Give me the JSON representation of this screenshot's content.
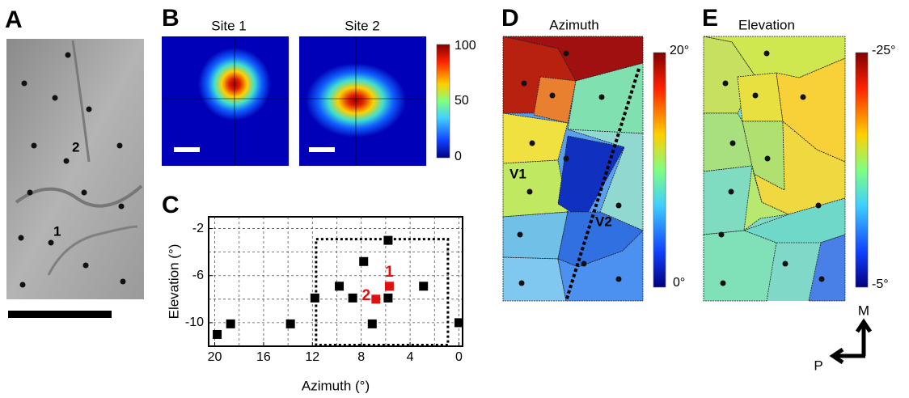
{
  "panels": {
    "a": "A",
    "b": "B",
    "c": "C",
    "d": "D",
    "e": "E"
  },
  "panel_a": {
    "site_labels": [
      "1",
      "2"
    ]
  },
  "panel_b": {
    "titles": [
      "Site 1",
      "Site 2"
    ],
    "colorbar_ticks": [
      "100",
      "50",
      "0"
    ]
  },
  "panel_d": {
    "title": "Azimuth",
    "areas": [
      "V1",
      "V2"
    ],
    "colorbar_ticks": [
      "20°",
      "0°"
    ]
  },
  "panel_e": {
    "title": "Elevation",
    "colorbar_ticks": [
      "-25°",
      "-5°"
    ]
  },
  "compass": {
    "medial": "M",
    "posterior": "P"
  },
  "chart_data": {
    "type": "scatter",
    "x_label": "Azimuth (°)",
    "y_label": "Elevation (°)",
    "xlim": [
      20.5,
      -0.3
    ],
    "ylim": [
      -12,
      -1
    ],
    "xticks": [
      20,
      16,
      12,
      8,
      4,
      0
    ],
    "yticks": [
      -10,
      -6,
      -2
    ],
    "minor_xticks": [
      18,
      14,
      10,
      6,
      2
    ],
    "minor_yticks": [
      -8,
      -4
    ],
    "grid": true,
    "series": [
      {
        "color": "#000000",
        "x": [
          5.8,
          7.8,
          9.8,
          8.7,
          11.8,
          5.8,
          2.9,
          7.1,
          13.8,
          18.7,
          19.8,
          0
        ],
        "values": [
          -3.0,
          -4.8,
          -6.9,
          -7.9,
          -7.9,
          -7.9,
          -6.9,
          -10.1,
          -10.1,
          -10.1,
          -11.0,
          -10.0
        ]
      },
      {
        "color": "#e01010",
        "x": [
          5.7,
          6.8
        ],
        "values": [
          -6.9,
          -8.0
        ],
        "labels": [
          "1",
          "2"
        ]
      }
    ],
    "region": {
      "x": [
        11.7,
        0.9
      ],
      "y": [
        -2.9,
        -11.9
      ]
    }
  }
}
